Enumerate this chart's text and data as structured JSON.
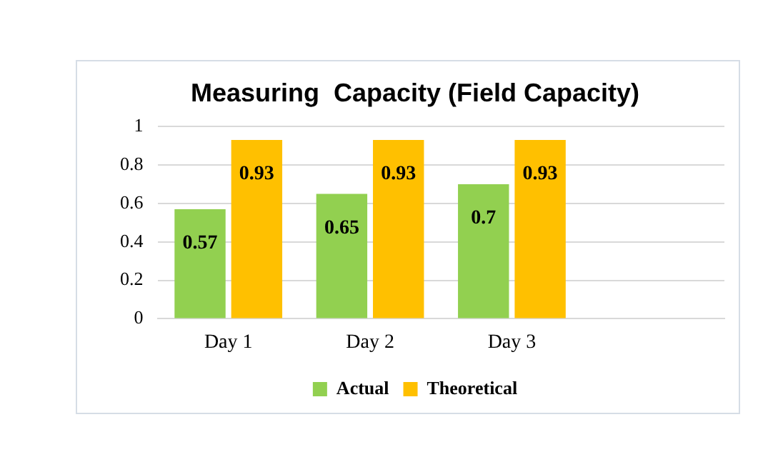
{
  "chart_data": {
    "type": "bar",
    "title": "Measuring  Capacity (Field Capacity)",
    "categories": [
      "Day 1",
      "Day 2",
      "Day 3",
      null
    ],
    "series": [
      {
        "name": "Actual",
        "color": "#92d050",
        "values": [
          0.57,
          0.65,
          0.7,
          null
        ]
      },
      {
        "name": "Theoretical",
        "color": "#ffc000",
        "values": [
          0.93,
          0.93,
          0.93,
          null
        ]
      }
    ],
    "ylim": [
      0,
      1
    ],
    "yticks": [
      0,
      0.2,
      0.4,
      0.6,
      0.8,
      1
    ],
    "grid": "y",
    "legend": "bottom",
    "data_labels": true
  }
}
